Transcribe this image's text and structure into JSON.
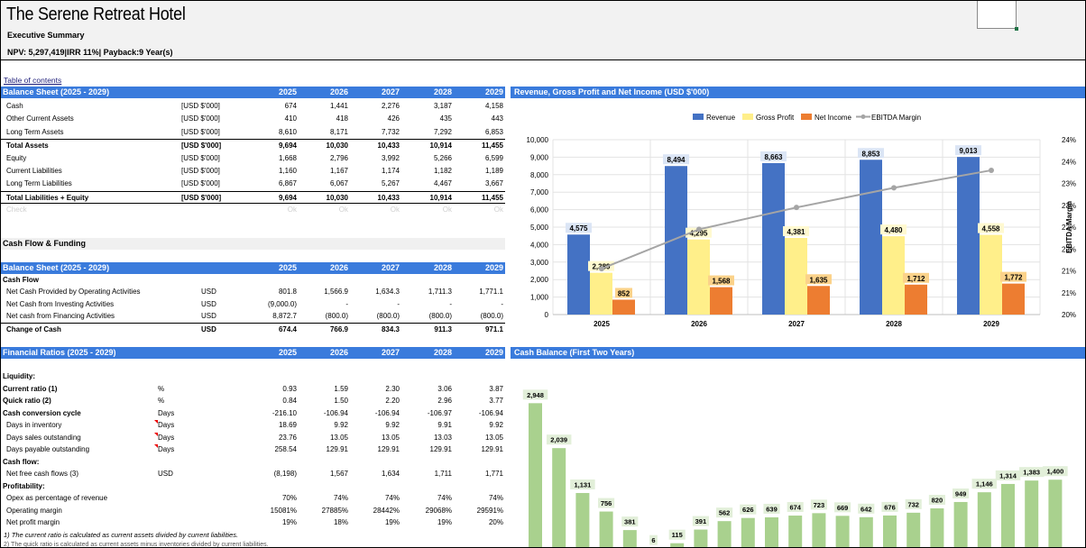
{
  "header": {
    "title": "The Serene Retreat Hotel",
    "subtitle": "Executive Summary",
    "kpis": "NPV: 5,297,419|IRR 11%| Payback:9 Year(s)"
  },
  "toc_link": "Table of contents",
  "balance_sheet": {
    "title": "Balance Sheet (2025 - 2029)",
    "years": [
      "2025",
      "2026",
      "2027",
      "2028",
      "2029"
    ],
    "rows": [
      {
        "label": "Cash",
        "unit": "[USD $'000]",
        "values": [
          "674",
          "1,441",
          "2,276",
          "3,187",
          "4,158"
        ],
        "style": ""
      },
      {
        "label": "Other Current Assets",
        "unit": "[USD $'000]",
        "values": [
          "410",
          "418",
          "426",
          "435",
          "443"
        ],
        "style": ""
      },
      {
        "label": "Long Term Assets",
        "unit": "[USD $'000]",
        "values": [
          "8,610",
          "8,171",
          "7,732",
          "7,292",
          "6,853"
        ],
        "style": ""
      },
      {
        "label": "Total Assets",
        "unit": "[USD $'000]",
        "values": [
          "9,694",
          "10,030",
          "10,433",
          "10,914",
          "11,455"
        ],
        "style": "total"
      },
      {
        "label": "Equity",
        "unit": "[USD $'000]",
        "values": [
          "1,668",
          "2,796",
          "3,992",
          "5,266",
          "6,599"
        ],
        "style": ""
      },
      {
        "label": "Current Liabilities",
        "unit": "[USD $'000]",
        "values": [
          "1,160",
          "1,167",
          "1,174",
          "1,182",
          "1,189"
        ],
        "style": ""
      },
      {
        "label": "Long Term Liabilities",
        "unit": "[USD $'000]",
        "values": [
          "6,867",
          "6,067",
          "5,267",
          "4,467",
          "3,667"
        ],
        "style": ""
      },
      {
        "label": "Total Liabilities + Equity",
        "unit": "[USD $'000]",
        "values": [
          "9,694",
          "10,030",
          "10,433",
          "10,914",
          "11,455"
        ],
        "style": "total2"
      },
      {
        "label": "Check",
        "unit": "",
        "values": [
          "Ok",
          "Ok",
          "Ok",
          "Ok",
          "Ok"
        ],
        "style": "grey"
      }
    ]
  },
  "cash_flow_section": "Cash Flow & Funding",
  "cash_flow": {
    "title": "Balance Sheet (2025 - 2029)",
    "years": [
      "2025",
      "2026",
      "2027",
      "2028",
      "2029"
    ],
    "heading": "Cash Flow",
    "rows": [
      {
        "label": "Net Cash Provided by Operating Activities",
        "unit": "USD",
        "values": [
          "801.8",
          "1,566.9",
          "1,634.3",
          "1,711.3",
          "1,771.1"
        ],
        "style": ""
      },
      {
        "label": "Net Cash from Investing Activities",
        "unit": "USD",
        "values": [
          "(9,000.0)",
          "-",
          "-",
          "-",
          "-"
        ],
        "style": ""
      },
      {
        "label": "Net cash from Financing Activities",
        "unit": "USD",
        "values": [
          "8,872.7",
          "(800.0)",
          "(800.0)",
          "(800.0)",
          "(800.0)"
        ],
        "style": ""
      },
      {
        "label": "Change of Cash",
        "unit": "USD",
        "values": [
          "674.4",
          "766.9",
          "834.3",
          "911.3",
          "971.1"
        ],
        "style": "total"
      }
    ]
  },
  "ratios": {
    "title": "Financial Ratios (2025 - 2029)",
    "years": [
      "2025",
      "2026",
      "2027",
      "2028",
      "2029"
    ],
    "rows": [
      {
        "label": "Liquidity:",
        "unit": "",
        "values": [
          "",
          "",
          "",
          "",
          ""
        ],
        "style": "head"
      },
      {
        "label": "Current ratio (1)",
        "unit": "%",
        "values": [
          "0.93",
          "1.59",
          "2.30",
          "3.06",
          "3.87"
        ],
        "style": "b"
      },
      {
        "label": "Quick ratio (2)",
        "unit": "%",
        "values": [
          "0.84",
          "1.50",
          "2.20",
          "2.96",
          "3.77"
        ],
        "style": "b"
      },
      {
        "label": "Cash conversion cycle",
        "unit": "Days",
        "values": [
          "-216.10",
          "-106.94",
          "-106.94",
          "-106.97",
          "-106.94"
        ],
        "style": "b"
      },
      {
        "label": "Days in inventory",
        "unit": "Days",
        "values": [
          "18.69",
          "9.92",
          "9.92",
          "9.91",
          "9.92"
        ],
        "style": "tick"
      },
      {
        "label": "Days sales outstanding",
        "unit": "Days",
        "values": [
          "23.76",
          "13.05",
          "13.05",
          "13.03",
          "13.05"
        ],
        "style": "tick"
      },
      {
        "label": "Days payable outstanding",
        "unit": "Days",
        "values": [
          "258.54",
          "129.91",
          "129.91",
          "129.91",
          "129.91"
        ],
        "style": "tick"
      },
      {
        "label": "Cash flow:",
        "unit": "",
        "values": [
          "",
          "",
          "",
          "",
          ""
        ],
        "style": "head"
      },
      {
        "label": " Net free cash flows (3)",
        "unit": "USD",
        "values": [
          "(8,198)",
          "1,567",
          "1,634",
          "1,711",
          "1,771"
        ],
        "style": ""
      },
      {
        "label": "Profitability:",
        "unit": "",
        "values": [
          "",
          "",
          "",
          "",
          ""
        ],
        "style": "head"
      },
      {
        "label": "Opex as percentage of revenue",
        "unit": "",
        "values": [
          "70%",
          "74%",
          "74%",
          "74%",
          "74%"
        ],
        "style": ""
      },
      {
        "label": "Operating margin",
        "unit": "",
        "values": [
          "15081%",
          "27885%",
          "28442%",
          "29068%",
          "29591%"
        ],
        "style": ""
      },
      {
        "label": "Net profit margin",
        "unit": "",
        "values": [
          "19%",
          "18%",
          "19%",
          "19%",
          "20%"
        ],
        "style": ""
      }
    ],
    "note1": "1) The current ratio is calculated as current assets divided by current liabilities.",
    "note2": "2) The quick ratio is calculated as current assets minus inventories divided by current liabilities."
  },
  "colors": {
    "band": "#3a7bdc",
    "revenue": "#4472c4",
    "gross_profit": "#ffef8a",
    "net_income": "#ed7d31",
    "ebitda": "#a5a5a5",
    "cash": "#a9d18e"
  },
  "chart_data": [
    {
      "type": "bar",
      "title": "Revenue, Gross Profit and Net Income (USD $'000)",
      "categories": [
        "2025",
        "2026",
        "2027",
        "2028",
        "2029"
      ],
      "series": [
        {
          "name": "Revenue",
          "values": [
            4575,
            8494,
            8663,
            8853,
            9013
          ],
          "labels": [
            "4,575",
            "8,494",
            "8,663",
            "8,853",
            "9,013"
          ]
        },
        {
          "name": "Gross Profit",
          "values": [
            2389,
            4295,
            4381,
            4480,
            4558
          ],
          "labels": [
            "2,389",
            "4,295",
            "4,381",
            "4,480",
            "4,558"
          ]
        },
        {
          "name": "Net Income",
          "values": [
            852,
            1568,
            1635,
            1712,
            1772
          ],
          "labels": [
            "852",
            "1,568",
            "1,635",
            "1,712",
            "1,772"
          ]
        },
        {
          "name": "EBITDA Margin",
          "type": "line",
          "axis": "right",
          "values": [
            21.05,
            21.95,
            22.45,
            22.9,
            23.3
          ]
        }
      ],
      "ylim": [
        0,
        10000
      ],
      "yticks": [
        "0",
        "1,000",
        "2,000",
        "3,000",
        "4,000",
        "5,000",
        "6,000",
        "7,000",
        "8,000",
        "9,000",
        "10,000"
      ],
      "y2lim": [
        20,
        24
      ],
      "y2ticks": [
        "20%",
        "21%",
        "21%",
        "22%",
        "22%",
        "23%",
        "23%",
        "24%",
        "24%"
      ],
      "y2label": "EBITDA Margin",
      "legend": "top"
    },
    {
      "type": "bar",
      "title": "Cash Balance (First Two Years)",
      "values": [
        2948,
        2039,
        1131,
        756,
        381,
        6,
        115,
        391,
        562,
        626,
        639,
        674,
        723,
        669,
        642,
        676,
        732,
        820,
        949,
        1146,
        1314,
        1383,
        1400
      ],
      "labels": [
        "2,948",
        "2,039",
        "1,131",
        "756",
        "381",
        "6",
        "115",
        "391",
        "562",
        "626",
        "639",
        "674",
        "723",
        "669",
        "642",
        "676",
        "732",
        "820",
        "949",
        "1,146",
        "1,314",
        "1,383",
        "1,400"
      ]
    }
  ]
}
